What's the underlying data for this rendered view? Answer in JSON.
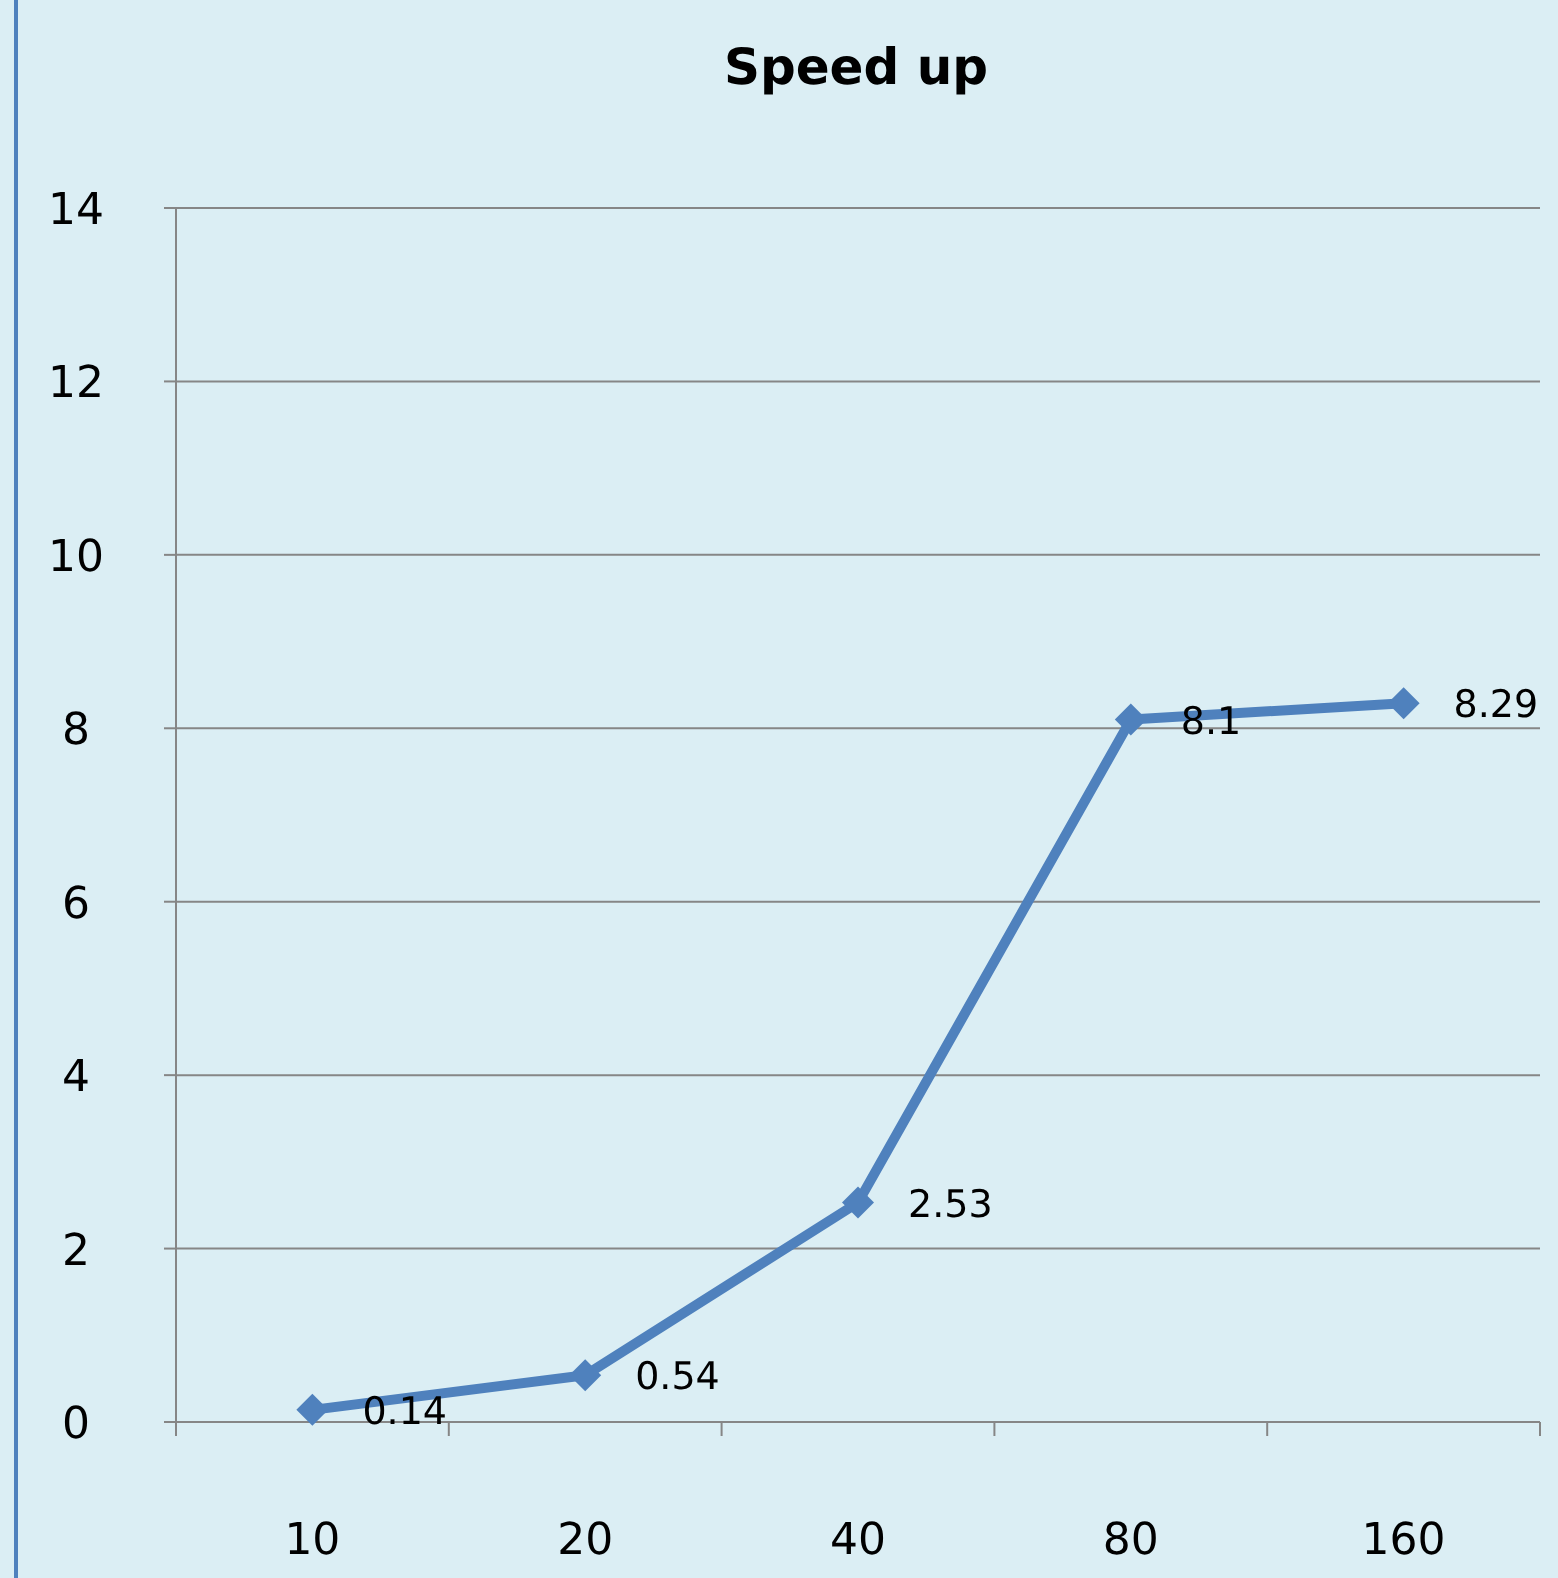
{
  "chart_data": {
    "type": "line",
    "title": "Speed up",
    "categories": [
      "10",
      "20",
      "40",
      "80",
      "160"
    ],
    "series": [
      {
        "color": "#4f81bd",
        "values": [
          0.14,
          0.54,
          2.53,
          8.1,
          8.29
        ]
      }
    ],
    "ylim": [
      0,
      14
    ],
    "yticks": [
      0,
      2,
      4,
      6,
      8,
      10,
      12,
      14
    ],
    "grid": "y",
    "marker": "diamond",
    "line_style": "solid",
    "data_labels": true
  }
}
